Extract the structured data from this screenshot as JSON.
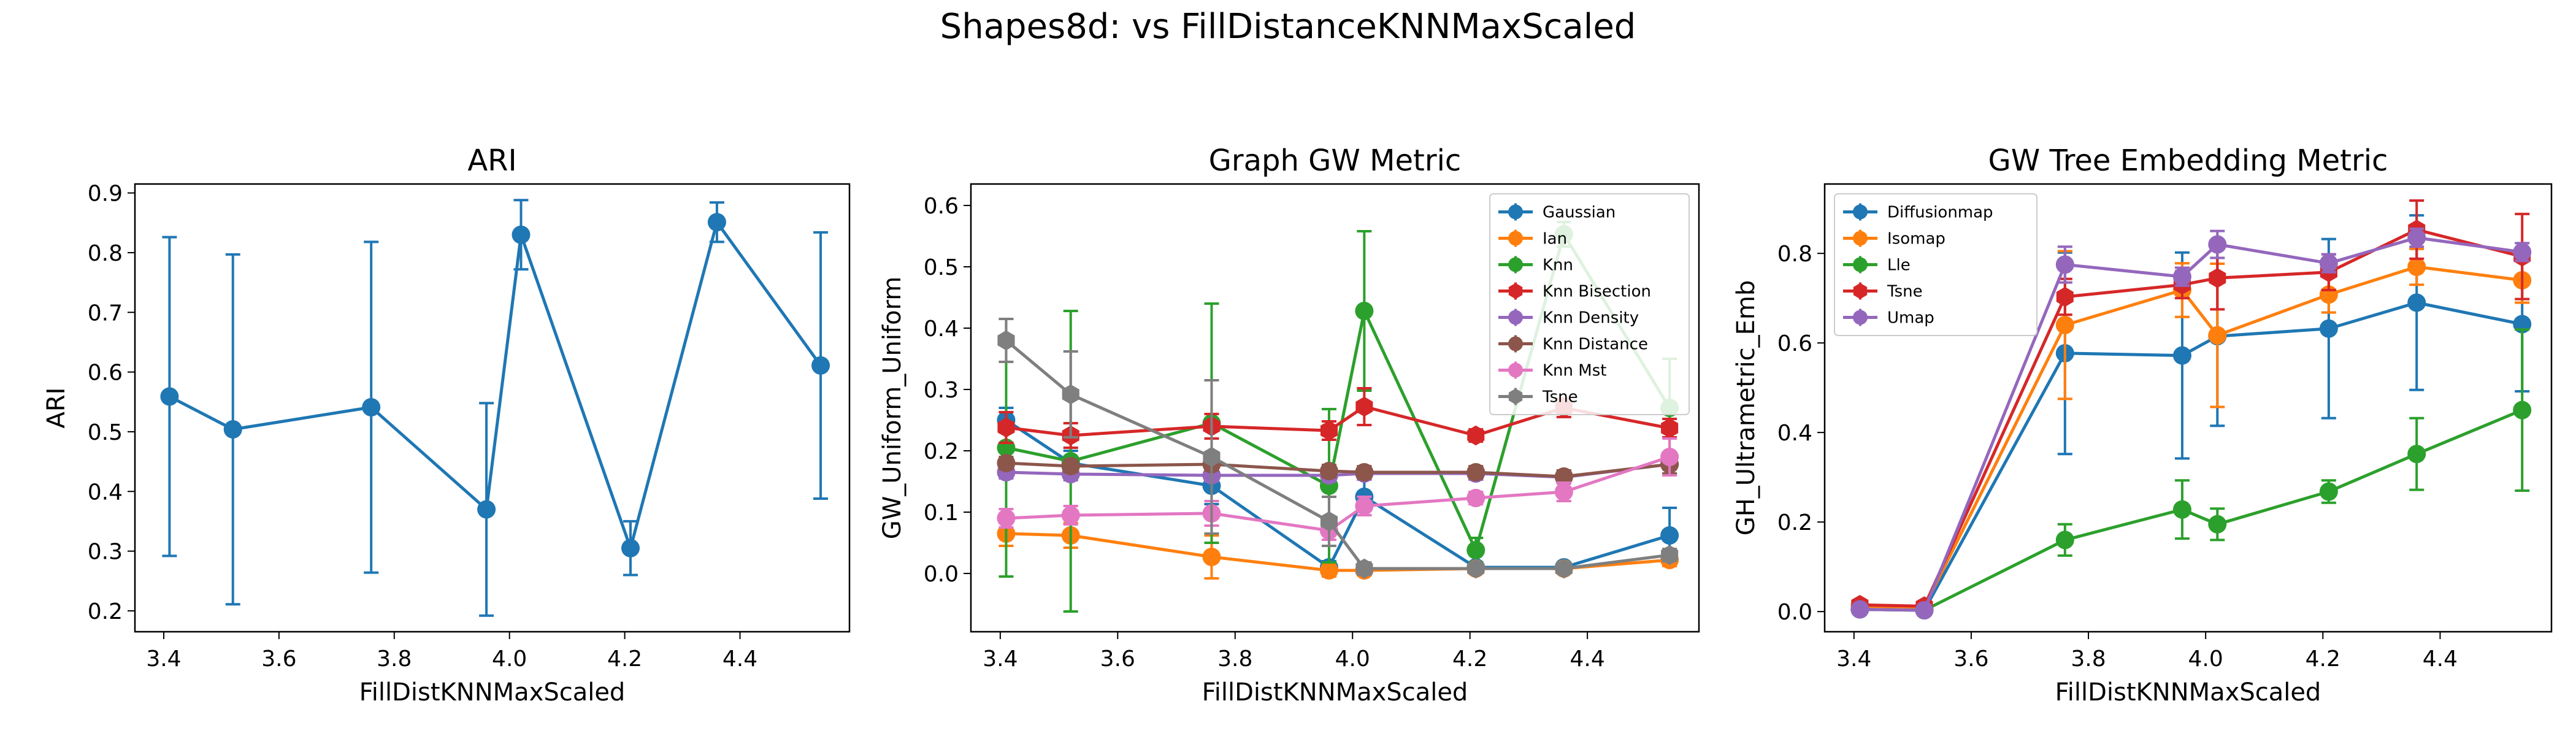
{
  "suptitle": "Shapes8d: vs FillDistanceKNNMaxScaled",
  "chart_data": [
    {
      "type": "line",
      "title": "ARI",
      "xlabel": "FillDistKNNMaxScaled",
      "ylabel": "ARI",
      "xlim": [
        3.35,
        4.59
      ],
      "ylim": [
        0.165,
        0.915
      ],
      "xticks": [
        3.4,
        3.6,
        3.8,
        4.0,
        4.2,
        4.4
      ],
      "xtick_labels": [
        "3.4",
        "3.6",
        "3.8",
        "4.0",
        "4.2",
        "4.4"
      ],
      "yticks": [
        0.2,
        0.3,
        0.4,
        0.5,
        0.6,
        0.7,
        0.8,
        0.9
      ],
      "ytick_labels": [
        "0.2",
        "0.3",
        "0.4",
        "0.5",
        "0.6",
        "0.7",
        "0.8",
        "0.9"
      ],
      "grid": false,
      "legend": null,
      "x": [
        3.41,
        3.52,
        3.76,
        3.96,
        4.02,
        4.21,
        4.36,
        4.54
      ],
      "series": [
        {
          "color": "#1f77b4",
          "marker": "circle",
          "values": [
            0.559,
            0.504,
            0.541,
            0.37,
            0.83,
            0.305,
            0.851,
            0.611
          ],
          "err": [
            0.267,
            0.293,
            0.277,
            0.178,
            0.058,
            0.045,
            0.033,
            0.223
          ]
        }
      ]
    },
    {
      "type": "line",
      "title": "Graph GW Metric",
      "xlabel": "FillDistKNNMaxScaled",
      "ylabel": "GW_Uniform_Uniform",
      "xlim": [
        3.35,
        4.59
      ],
      "ylim": [
        -0.095,
        0.635
      ],
      "xticks": [
        3.4,
        3.6,
        3.8,
        4.0,
        4.2,
        4.4
      ],
      "xtick_labels": [
        "3.4",
        "3.6",
        "3.8",
        "4.0",
        "4.2",
        "4.4"
      ],
      "yticks": [
        0.0,
        0.1,
        0.2,
        0.3,
        0.4,
        0.5,
        0.6
      ],
      "ytick_labels": [
        "0.0",
        "0.1",
        "0.2",
        "0.3",
        "0.4",
        "0.5",
        "0.6"
      ],
      "grid": false,
      "legend": "top-right",
      "x": [
        3.41,
        3.52,
        3.76,
        3.96,
        4.02,
        4.21,
        4.36,
        4.54
      ],
      "series": [
        {
          "name": "Gaussian",
          "color": "#1f77b4",
          "marker": "circle",
          "values": [
            0.25,
            0.18,
            0.143,
            0.01,
            0.125,
            0.01,
            0.01,
            0.062
          ],
          "err": [
            0.02,
            0.02,
            0.03,
            0.01,
            0.03,
            0.005,
            0.005,
            0.045
          ]
        },
        {
          "name": "Ian",
          "color": "#ff7f0e",
          "marker": "circle",
          "values": [
            0.065,
            0.062,
            0.027,
            0.005,
            0.005,
            0.008,
            0.008,
            0.022
          ],
          "err": [
            0.02,
            0.02,
            0.035,
            0.01,
            0.005,
            0.005,
            0.005,
            0.01
          ]
        },
        {
          "name": "Knn",
          "color": "#2ca02c",
          "marker": "circle",
          "values": [
            0.205,
            0.183,
            0.245,
            0.143,
            0.428,
            0.038,
            0.553,
            0.27
          ],
          "err": [
            0.21,
            0.245,
            0.195,
            0.125,
            0.13,
            0.02,
            0.02,
            0.08
          ]
        },
        {
          "name": "Knn Bisection",
          "color": "#d62728",
          "marker": "hexagon",
          "values": [
            0.238,
            0.225,
            0.24,
            0.233,
            0.272,
            0.225,
            0.27,
            0.237
          ],
          "err": [
            0.025,
            0.02,
            0.02,
            0.015,
            0.03,
            0.01,
            0.015,
            0.015
          ]
        },
        {
          "name": "Knn Density",
          "color": "#9467bd",
          "marker": "circle",
          "values": [
            0.165,
            0.162,
            0.16,
            0.16,
            0.163,
            0.163,
            0.157,
            0.178
          ],
          "err": [
            0.01,
            0.01,
            0.01,
            0.01,
            0.01,
            0.01,
            0.01,
            0.015
          ]
        },
        {
          "name": "Knn Distance",
          "color": "#8c564b",
          "marker": "circle",
          "values": [
            0.18,
            0.175,
            0.178,
            0.167,
            0.165,
            0.165,
            0.158,
            0.178
          ],
          "err": [
            0.01,
            0.01,
            0.01,
            0.01,
            0.01,
            0.01,
            0.01,
            0.015
          ]
        },
        {
          "name": "Knn Mst",
          "color": "#e377c2",
          "marker": "circle",
          "values": [
            0.09,
            0.095,
            0.098,
            0.07,
            0.11,
            0.123,
            0.133,
            0.19
          ],
          "err": [
            0.015,
            0.015,
            0.02,
            0.015,
            0.015,
            0.01,
            0.015,
            0.03
          ]
        },
        {
          "name": "Tsne",
          "color": "#7f7f7f",
          "marker": "hexagon",
          "values": [
            0.38,
            0.292,
            0.19,
            0.085,
            0.008,
            0.008,
            0.008,
            0.03
          ],
          "err": [
            0.035,
            0.07,
            0.125,
            0.04,
            0.01,
            0.005,
            0.005,
            0.01
          ]
        }
      ]
    },
    {
      "type": "line",
      "title": "GW Tree Embedding Metric",
      "xlabel": "FillDistKNNMaxScaled",
      "ylabel": "GH_Ultrametric_Emb",
      "xlim": [
        3.35,
        4.59
      ],
      "ylim": [
        -0.045,
        0.955
      ],
      "xticks": [
        3.4,
        3.6,
        3.8,
        4.0,
        4.2,
        4.4
      ],
      "xtick_labels": [
        "3.4",
        "3.6",
        "3.8",
        "4.0",
        "4.2",
        "4.4"
      ],
      "yticks": [
        0.0,
        0.2,
        0.4,
        0.6,
        0.8
      ],
      "ytick_labels": [
        "0.0",
        "0.2",
        "0.4",
        "0.6",
        "0.8"
      ],
      "grid": false,
      "legend": "top-left",
      "x": [
        3.41,
        3.52,
        3.76,
        3.96,
        4.02,
        4.21,
        4.36,
        4.54
      ],
      "series": [
        {
          "name": "Diffusionmap",
          "color": "#1f77b4",
          "marker": "circle",
          "values": [
            0.005,
            0.003,
            0.577,
            0.572,
            0.615,
            0.632,
            0.69,
            0.642
          ],
          "err": [
            0.005,
            0.005,
            0.225,
            0.23,
            0.2,
            0.2,
            0.195,
            0.15
          ]
        },
        {
          "name": "Isomap",
          "color": "#ff7f0e",
          "marker": "circle",
          "values": [
            0.012,
            0.01,
            0.64,
            0.718,
            0.617,
            0.708,
            0.77,
            0.74
          ],
          "err": [
            0.005,
            0.005,
            0.165,
            0.06,
            0.16,
            0.04,
            0.04,
            0.05
          ]
        },
        {
          "name": "Lle",
          "color": "#2ca02c",
          "marker": "circle",
          "values": [
            0.005,
            0.003,
            0.16,
            0.228,
            0.195,
            0.268,
            0.352,
            0.45
          ],
          "err": [
            0.005,
            0.005,
            0.035,
            0.065,
            0.035,
            0.025,
            0.08,
            0.18
          ]
        },
        {
          "name": "Tsne",
          "color": "#d62728",
          "marker": "hexagon",
          "values": [
            0.015,
            0.012,
            0.703,
            0.73,
            0.745,
            0.758,
            0.853,
            0.793
          ],
          "err": [
            0.005,
            0.005,
            0.04,
            0.03,
            0.07,
            0.04,
            0.065,
            0.095
          ]
        },
        {
          "name": "Umap",
          "color": "#9467bd",
          "marker": "circle",
          "values": [
            0.005,
            0.003,
            0.775,
            0.748,
            0.82,
            0.778,
            0.835,
            0.803
          ],
          "err": [
            0.005,
            0.005,
            0.04,
            0.02,
            0.03,
            0.02,
            0.02,
            0.02
          ]
        }
      ]
    }
  ]
}
